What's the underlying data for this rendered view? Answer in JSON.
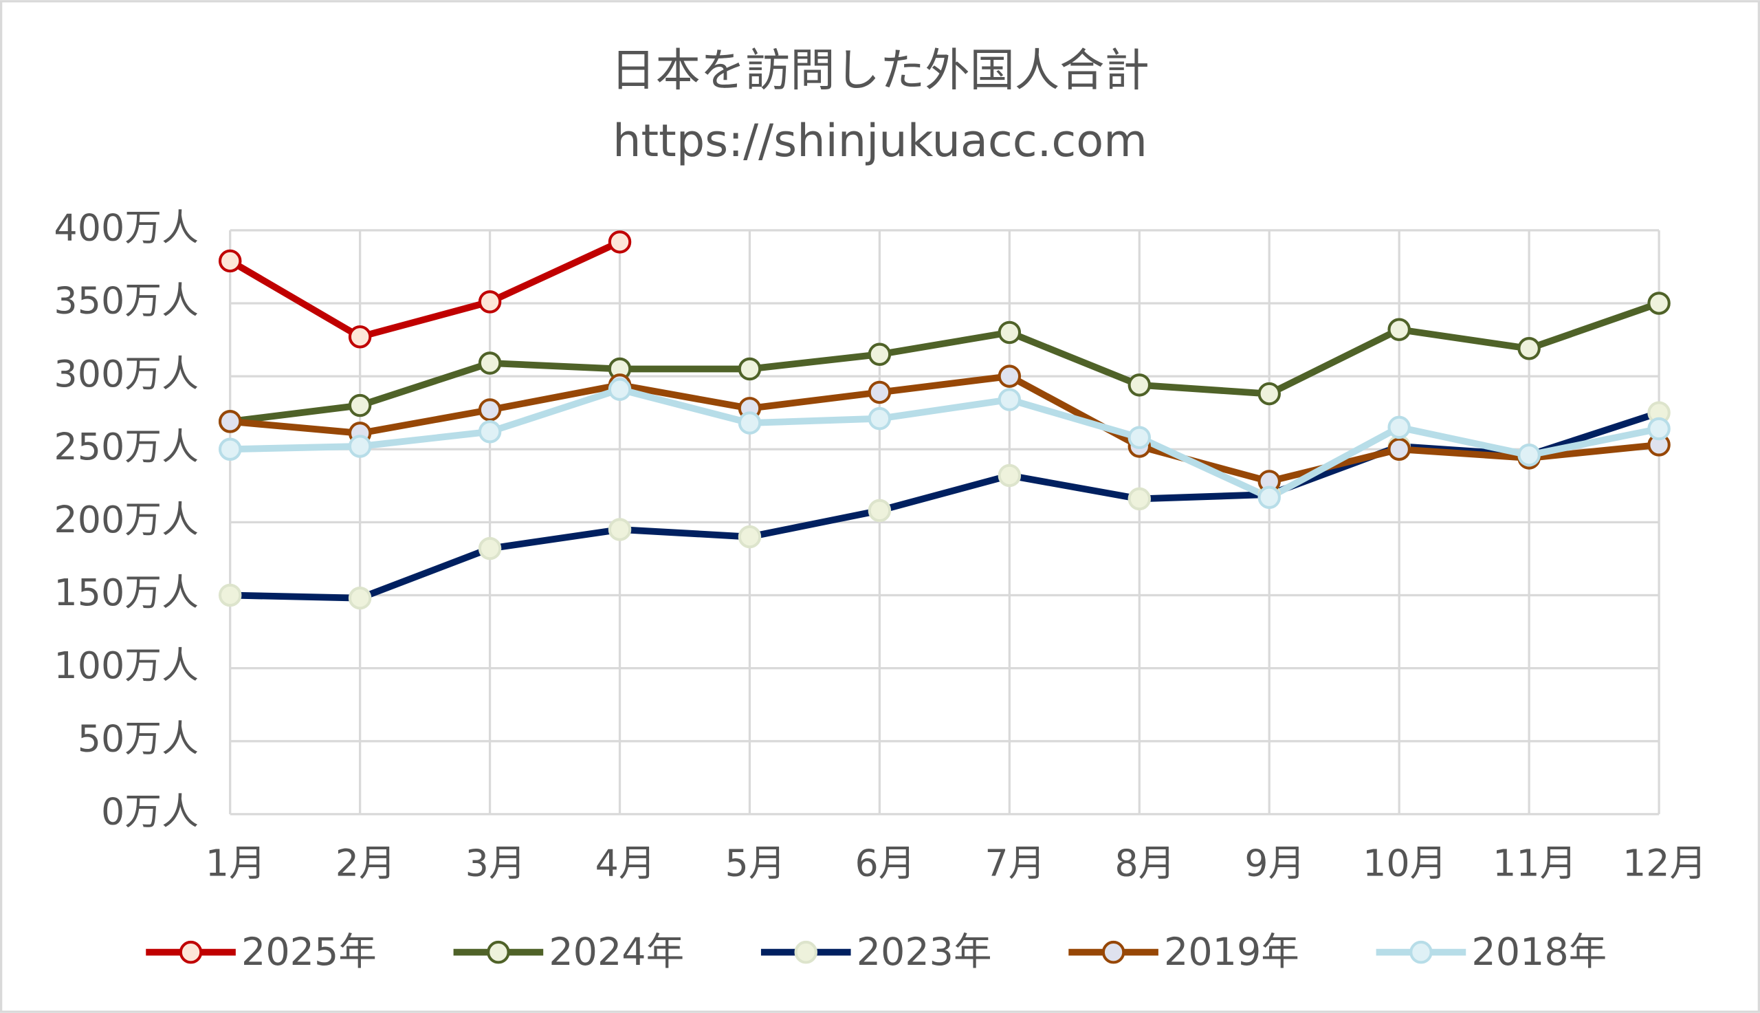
{
  "chart_data": {
    "type": "line",
    "title": "日本を訪問した外国人合計",
    "subtitle": "https://shinjukuacc.com",
    "categories": [
      "1月",
      "2月",
      "3月",
      "4月",
      "5月",
      "6月",
      "7月",
      "8月",
      "9月",
      "10月",
      "11月",
      "12月"
    ],
    "series": [
      {
        "name": "2025年",
        "color": "#c00000",
        "marker_color": "#fde6d8",
        "marker_edge": "#c00000",
        "values": [
          379,
          327,
          351,
          392,
          null,
          null,
          null,
          null,
          null,
          null,
          null,
          null
        ]
      },
      {
        "name": "2024年",
        "color": "#4f6228",
        "marker_color": "#eef2dc",
        "marker_edge": "#4f6228",
        "values": [
          269,
          280,
          309,
          305,
          305,
          315,
          330,
          294,
          288,
          332,
          319,
          350
        ]
      },
      {
        "name": "2023年",
        "color": "#002060",
        "marker_color": "#eef2dc",
        "marker_edge": "#dde4cc",
        "values": [
          150,
          148,
          182,
          195,
          190,
          208,
          232,
          216,
          219,
          252,
          246,
          275
        ]
      },
      {
        "name": "2019年",
        "color": "#974706",
        "marker_color": "#dfe2ee",
        "marker_edge": "#974706",
        "values": [
          269,
          261,
          277,
          294,
          278,
          289,
          300,
          252,
          228,
          250,
          244,
          253
        ]
      },
      {
        "name": "2018年",
        "color": "#b7dde8",
        "marker_color": "#dff1f6",
        "marker_edge": "#b7dde8",
        "values": [
          250,
          252,
          262,
          291,
          268,
          271,
          284,
          258,
          217,
          265,
          246,
          264
        ]
      }
    ],
    "ylim": [
      0,
      400
    ],
    "yticks": [
      {
        "value": 0,
        "label": "0万人"
      },
      {
        "value": 50,
        "label": "50万人"
      },
      {
        "value": 100,
        "label": "100万人"
      },
      {
        "value": 150,
        "label": "150万人"
      },
      {
        "value": 200,
        "label": "200万人"
      },
      {
        "value": 250,
        "label": "250万人"
      },
      {
        "value": 300,
        "label": "300万人"
      },
      {
        "value": 350,
        "label": "350万人"
      },
      {
        "value": 400,
        "label": "400万人"
      }
    ],
    "grid": true,
    "legend": "bottom"
  }
}
